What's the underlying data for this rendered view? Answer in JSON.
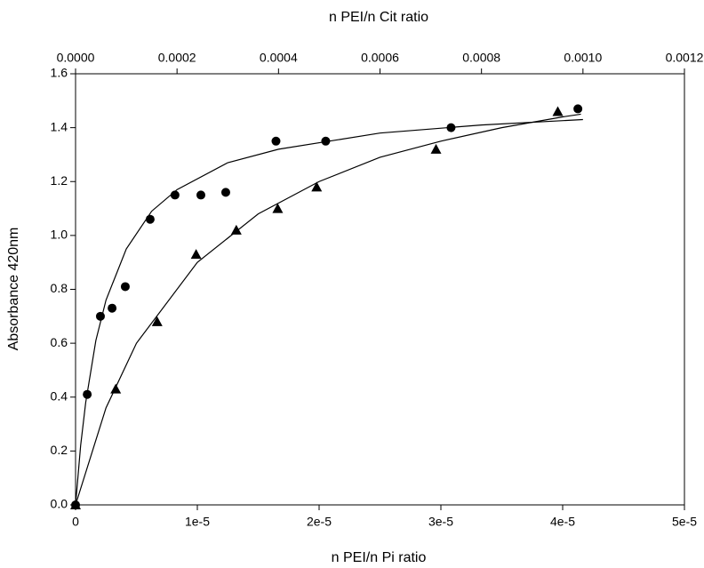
{
  "chart_data": {
    "type": "scatter",
    "top_axis_label": "n PEI/n Cit  ratio",
    "x_label": "n PEI/n Pi ratio",
    "y_label": "Absorbance 420nm",
    "xlim": [
      0,
      5e-05
    ],
    "xticks": [
      0,
      {
        "value": 1e-05,
        "label": "1e-5"
      },
      {
        "value": 2e-05,
        "label": "2e-5"
      },
      {
        "value": 3e-05,
        "label": "3e-5"
      },
      {
        "value": 4e-05,
        "label": "4e-5"
      },
      {
        "value": 5e-05,
        "label": "5e-5"
      }
    ],
    "x2lim": [
      0,
      0.0012
    ],
    "x2ticks": [
      {
        "value": 0,
        "label": "0.0000"
      },
      {
        "value": 0.0002,
        "label": "0.0002"
      },
      {
        "value": 0.0004,
        "label": "0.0004"
      },
      {
        "value": 0.0006,
        "label": "0.0006"
      },
      {
        "value": 0.0008,
        "label": "0.0008"
      },
      {
        "value": 0.001,
        "label": "0.0010"
      },
      {
        "value": 0.0012,
        "label": "0.0012"
      }
    ],
    "ylim": [
      0,
      1.6
    ],
    "yticks": [
      {
        "value": 0,
        "label": "0.0"
      },
      {
        "value": 0.2,
        "label": "0.2"
      },
      {
        "value": 0.4,
        "label": "0.4"
      },
      {
        "value": 0.6,
        "label": "0.6"
      },
      {
        "value": 0.8,
        "label": "0.8"
      },
      {
        "value": 1.0,
        "label": "1.0"
      },
      {
        "value": 1.2,
        "label": "1.2"
      },
      {
        "value": 1.4,
        "label": "1.4"
      },
      {
        "value": 1.6,
        "label": "1.6"
      }
    ],
    "series": [
      {
        "style": "markers",
        "marker": "circle",
        "axis": "x2",
        "color": "#000000",
        "x": [
          0,
          2.3e-05,
          4.9e-05,
          7.2e-05,
          9.8e-05,
          0.000147,
          0.000196,
          0.000247,
          0.000296,
          0.000395,
          0.000493,
          0.00074,
          0.00099
        ],
        "values": [
          0.0,
          0.41,
          0.7,
          0.73,
          0.81,
          1.06,
          1.15,
          1.15,
          1.16,
          1.35,
          1.35,
          1.4,
          1.47
        ]
      },
      {
        "style": "markers",
        "marker": "triangle",
        "axis": "x",
        "color": "#000000",
        "x": [
          0,
          3.3e-06,
          6.7e-06,
          9.9e-06,
          1.32e-05,
          1.66e-05,
          1.98e-05,
          2.96e-05,
          3.96e-05
        ],
        "values": [
          0.0,
          0.43,
          0.68,
          0.93,
          1.02,
          1.1,
          1.18,
          1.32,
          1.46
        ]
      },
      {
        "style": "line",
        "axis": "x2",
        "color": "#000000",
        "x": [
          0,
          1e-05,
          2e-05,
          4e-05,
          6e-05,
          0.0001,
          0.00015,
          0.0002,
          0.0003,
          0.0004,
          0.0006,
          0.0008,
          0.001
        ],
        "values": [
          0,
          0.22,
          0.38,
          0.61,
          0.76,
          0.95,
          1.09,
          1.17,
          1.27,
          1.32,
          1.38,
          1.41,
          1.43
        ]
      },
      {
        "style": "line",
        "axis": "x",
        "color": "#000000",
        "x": [
          0,
          2.5e-06,
          5e-06,
          1e-05,
          1.5e-05,
          2e-05,
          2.5e-05,
          3e-05,
          3.5e-05,
          4e-05,
          4.15e-05
        ],
        "values": [
          0,
          0.36,
          0.6,
          0.9,
          1.08,
          1.2,
          1.29,
          1.35,
          1.4,
          1.44,
          1.45
        ]
      }
    ]
  }
}
